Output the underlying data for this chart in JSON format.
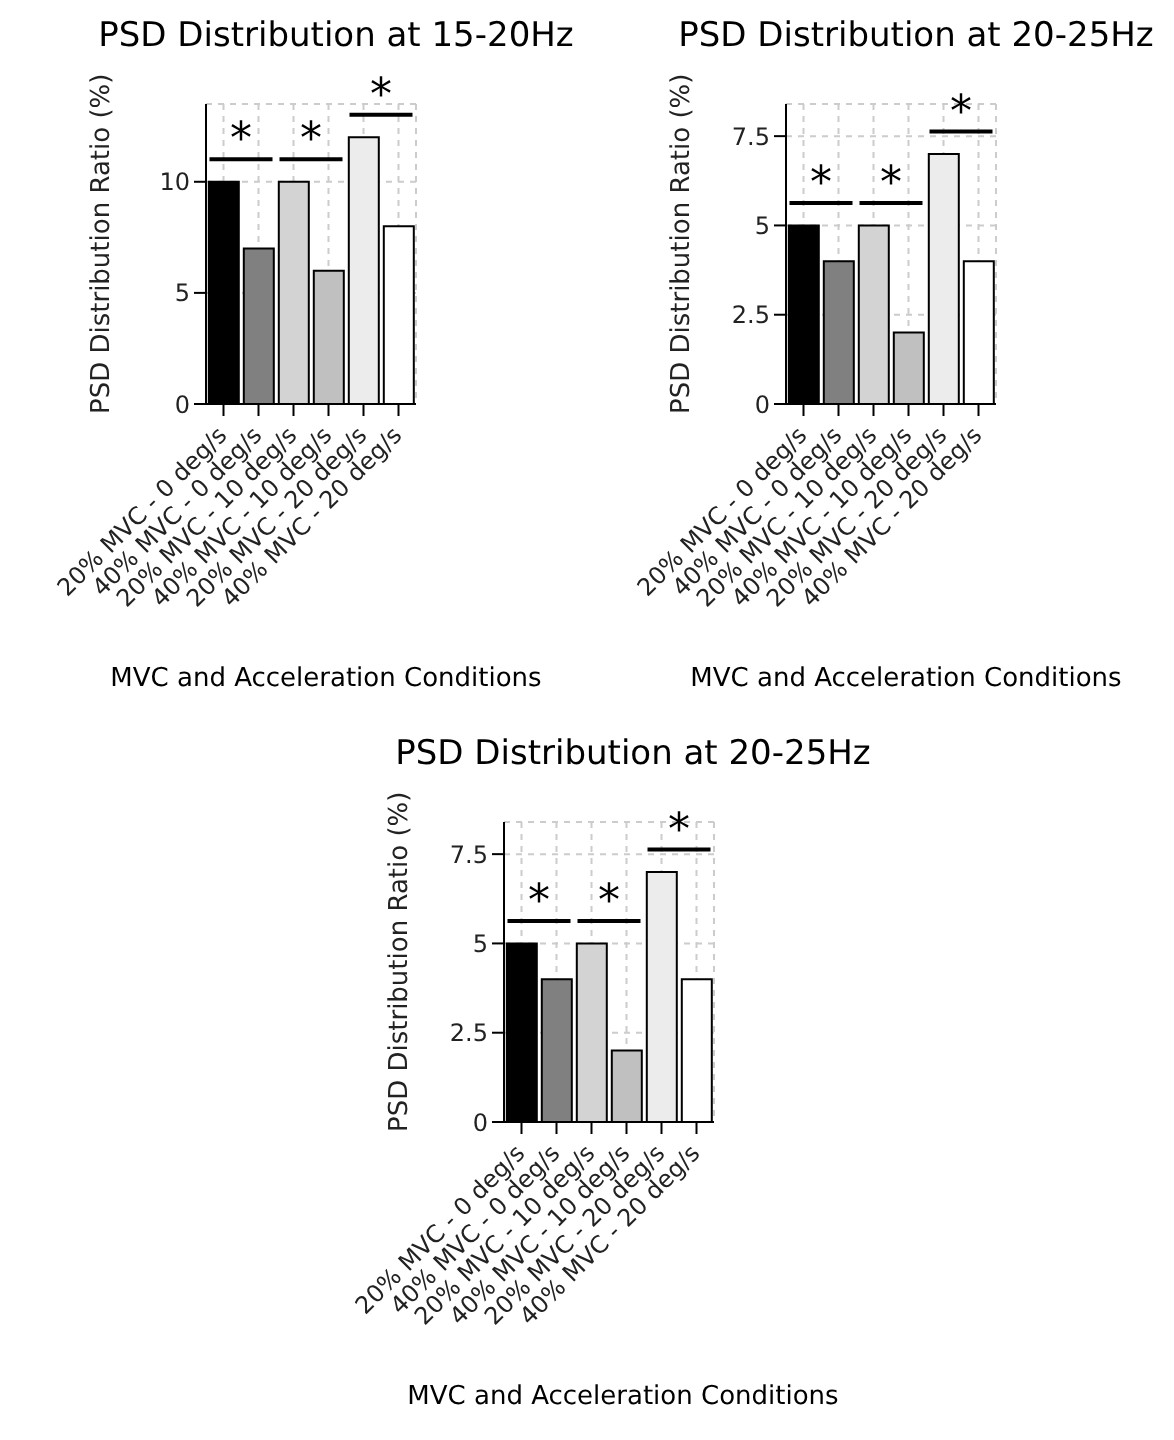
{
  "chart_data": [
    {
      "type": "bar",
      "title": "PSD Distribution at 15-20Hz",
      "xlabel": "MVC and Acceleration Conditions",
      "ylabel": "PSD Distribution Ratio (%)",
      "categories": [
        "20% MVC - 0 deg/s",
        "40% MVC - 0 deg/s",
        "20% MVC - 10 deg/s",
        "40% MVC - 10 deg/s",
        "20% MVC - 20 deg/s",
        "40% MVC - 20 deg/s"
      ],
      "values": [
        10,
        7,
        10,
        6,
        12,
        8
      ],
      "colors": [
        "#000000",
        "#808080",
        "#d3d3d3",
        "#c0c0c0",
        "#ececec",
        "#ffffff"
      ],
      "ylim": [
        0,
        13.5
      ],
      "yticks": [
        0,
        5,
        10
      ],
      "grid": true,
      "annotations": [
        "*",
        "*",
        "*"
      ]
    },
    {
      "type": "bar",
      "title": "PSD Distribution at 20-25Hz",
      "xlabel": "MVC and Acceleration Conditions",
      "ylabel": "PSD Distribution Ratio (%)",
      "categories": [
        "20% MVC - 0 deg/s",
        "40% MVC - 0 deg/s",
        "20% MVC - 10 deg/s",
        "40% MVC - 10 deg/s",
        "20% MVC - 20 deg/s",
        "40% MVC - 20 deg/s"
      ],
      "values": [
        5,
        4,
        5,
        2,
        7,
        4
      ],
      "colors": [
        "#000000",
        "#808080",
        "#d3d3d3",
        "#c0c0c0",
        "#ececec",
        "#ffffff"
      ],
      "ylim": [
        0,
        8.4
      ],
      "yticks": [
        0,
        2.5,
        5,
        7.5
      ],
      "grid": true,
      "annotations": [
        "*",
        "*",
        "*"
      ]
    },
    {
      "type": "bar",
      "title": "PSD Distribution at 20-25Hz",
      "xlabel": "MVC and Acceleration Conditions",
      "ylabel": "PSD Distribution Ratio (%)",
      "categories": [
        "20% MVC - 0 deg/s",
        "40% MVC - 0 deg/s",
        "20% MVC - 10 deg/s",
        "40% MVC - 10 deg/s",
        "20% MVC - 20 deg/s",
        "40% MVC - 20 deg/s"
      ],
      "values": [
        5,
        4,
        5,
        2,
        7,
        4
      ],
      "colors": [
        "#000000",
        "#808080",
        "#d3d3d3",
        "#c0c0c0",
        "#ececec",
        "#ffffff"
      ],
      "ylim": [
        0,
        8.4
      ],
      "yticks": [
        0,
        2.5,
        5,
        7.5
      ],
      "grid": true,
      "annotations": [
        "*",
        "*",
        "*"
      ]
    }
  ]
}
